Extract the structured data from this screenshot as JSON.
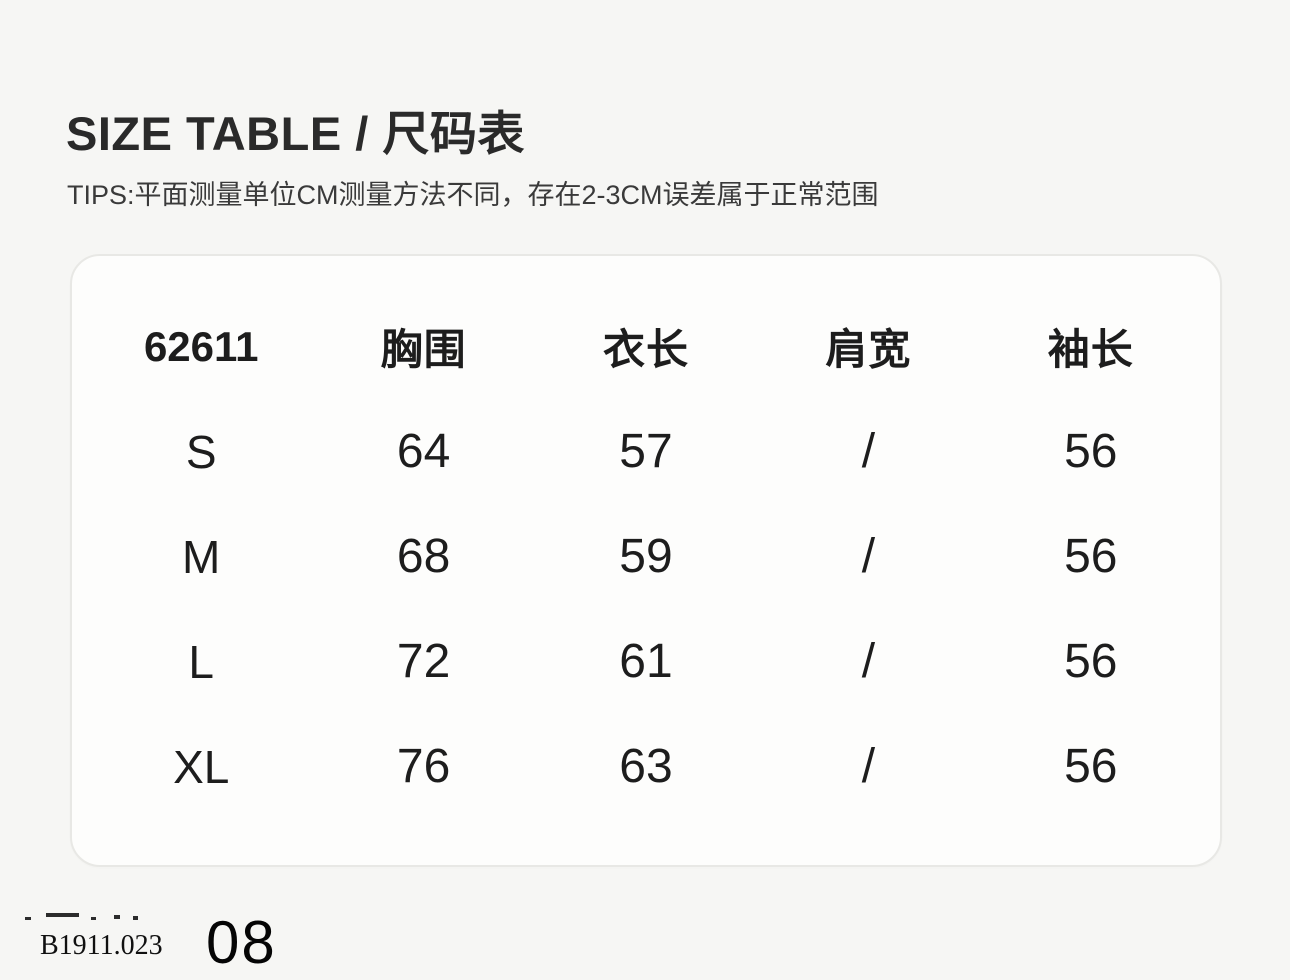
{
  "page": {
    "background": "#f6f6f4",
    "card_background": "#fdfdfc",
    "card_border": "#e8e8e5",
    "text_color": "#232323"
  },
  "header": {
    "title": "SIZE TABLE / 尺码表",
    "tips": "TIPS:平面测量单位CM测量方法不同，存在2-3CM误差属于正常范围"
  },
  "size_table": {
    "columns": [
      "62611",
      "胸围",
      "衣长",
      "肩宽",
      "袖长"
    ],
    "rows": [
      {
        "size": "S",
        "values": [
          "64",
          "57",
          "/",
          "56"
        ]
      },
      {
        "size": "M",
        "values": [
          "68",
          "59",
          "/",
          "56"
        ]
      },
      {
        "size": "L",
        "values": [
          "72",
          "61",
          "/",
          "56"
        ]
      },
      {
        "size": "XL",
        "values": [
          "76",
          "63",
          "/",
          "56"
        ]
      }
    ]
  },
  "footer": {
    "style_code": "B1911.023",
    "page_number": "08"
  }
}
